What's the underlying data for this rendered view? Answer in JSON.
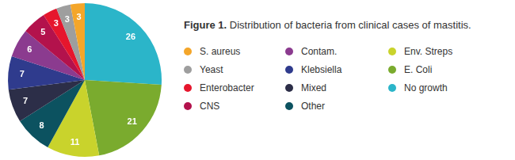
{
  "chart_data": {
    "type": "pie",
    "title": "Figure 1. Distribution of bacteria from clinical cases of mastitis.",
    "categories": [
      "No growth",
      "E. Coli",
      "Env. Streps",
      "Other",
      "Mixed",
      "Klebsiella",
      "Contam.",
      "CNS",
      "Enterobacter",
      "Yeast",
      "S. aureus"
    ],
    "values": [
      26,
      21,
      11,
      8,
      7,
      7,
      6,
      5,
      3,
      3,
      3
    ],
    "colors": [
      "#2bb5c9",
      "#7aab2e",
      "#c9d32c",
      "#0c5260",
      "#2c2e48",
      "#2f3b8d",
      "#8b3b8f",
      "#b3124c",
      "#e6162d",
      "#9e9e9e",
      "#f4a62a"
    ],
    "data_labels": true,
    "legend": "right"
  }
}
